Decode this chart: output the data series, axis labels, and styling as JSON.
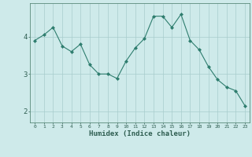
{
  "title": "",
  "xlabel": "Humidex (Indice chaleur)",
  "ylabel": "",
  "x": [
    0,
    1,
    2,
    3,
    4,
    5,
    6,
    7,
    8,
    9,
    10,
    11,
    12,
    13,
    14,
    15,
    16,
    17,
    18,
    19,
    20,
    21,
    22,
    23
  ],
  "y": [
    3.9,
    4.05,
    4.25,
    3.75,
    3.6,
    3.8,
    3.25,
    3.0,
    3.0,
    2.88,
    3.35,
    3.7,
    3.95,
    4.55,
    4.55,
    4.25,
    4.6,
    3.9,
    3.65,
    3.2,
    2.85,
    2.65,
    2.55,
    2.15
  ],
  "line_color": "#2e7d6e",
  "marker": "D",
  "marker_size": 2.0,
  "bg_color": "#ceeaea",
  "grid_color": "#a8cccc",
  "axis_color": "#5a8a7a",
  "tick_color": "#2e5d50",
  "label_color": "#2e5d50",
  "yticks": [
    2,
    3,
    4
  ],
  "ylim": [
    1.7,
    4.9
  ],
  "xlim": [
    -0.5,
    23.5
  ],
  "figsize": [
    3.2,
    2.0
  ],
  "dpi": 100
}
